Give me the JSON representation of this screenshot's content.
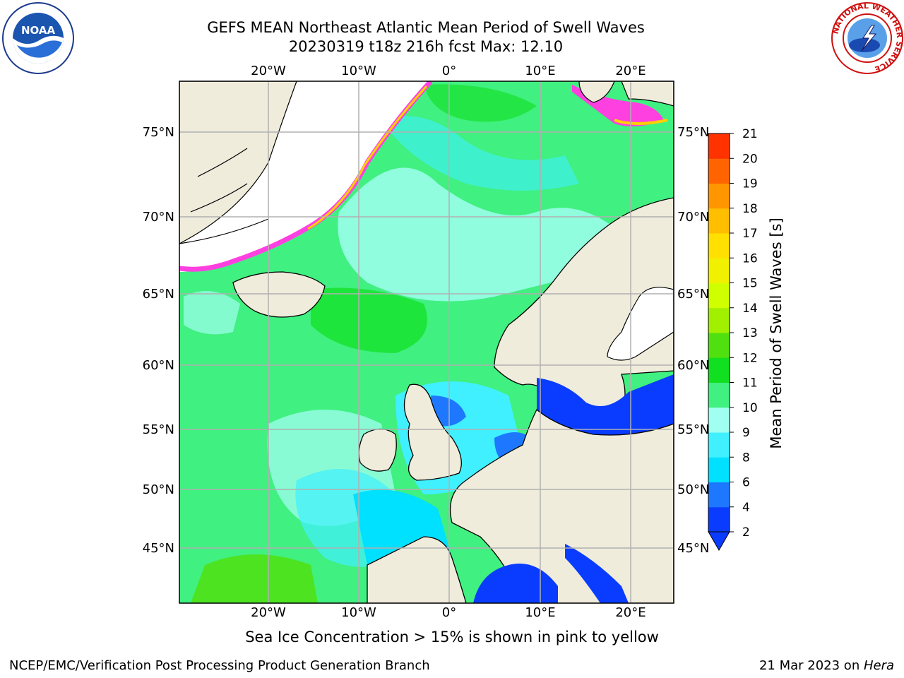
{
  "title": {
    "line1": "GEFS MEAN Northeast Atlantic Mean Period of Swell Waves",
    "line2": "20230319 t18z 216h fcst   Max: 12.10"
  },
  "map": {
    "lon_labels": [
      "20°W",
      "10°W",
      "0°",
      "10°E",
      "20°E"
    ],
    "lat_labels": [
      "75°N",
      "70°N",
      "65°N",
      "60°N",
      "55°N",
      "50°N",
      "45°N"
    ],
    "colors": {
      "land": "#efecdc",
      "ice_free_land": "#ffffff",
      "grid": "#b0b0b0",
      "coast": "#000000"
    }
  },
  "colorbar": {
    "label": "Mean Period of Swell Waves [s]",
    "ticks": [
      "2",
      "4",
      "6",
      "8",
      "9",
      "10",
      "11",
      "12",
      "13",
      "14",
      "15",
      "16",
      "17",
      "18",
      "19",
      "20",
      "21"
    ],
    "colors": [
      "#0a3cff",
      "#1e78ff",
      "#00e0ff",
      "#40f0ff",
      "#a0fff0",
      "#40f080",
      "#10e020",
      "#50e010",
      "#a0f000",
      "#d0ff00",
      "#f0f000",
      "#ffe000",
      "#ffbe00",
      "#ff9600",
      "#ff6400",
      "#ff3200",
      "#ff0000"
    ]
  },
  "note": "Sea Ice Concentration > 15% is shown in pink to yellow",
  "footer": {
    "left": "NCEP/EMC/Verification Post Processing Product Generation Branch",
    "right_prefix": "21 Mar 2023 on ",
    "right_system": "Hera"
  },
  "logos": {
    "left": "NOAA",
    "right": "NATIONAL WEATHER SERVICE"
  }
}
